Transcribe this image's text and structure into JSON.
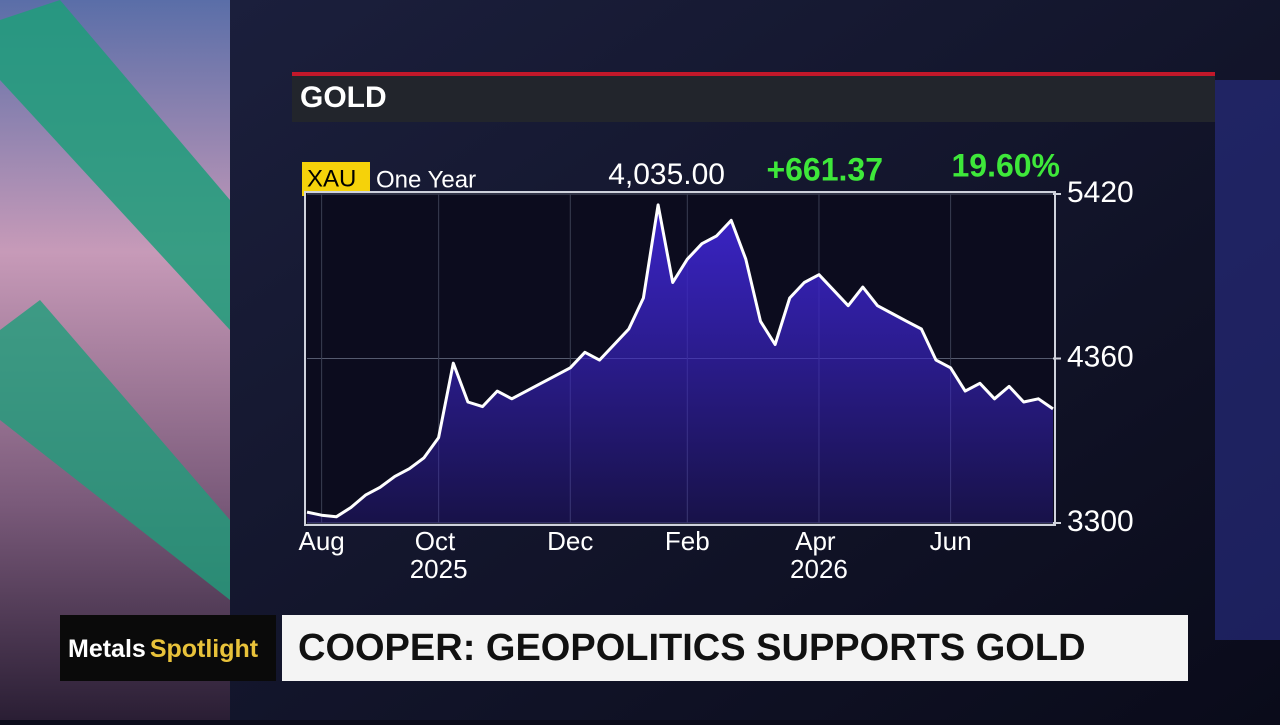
{
  "ticker": {
    "symbol": "XAU",
    "period": "One Year",
    "price": "4,035.00",
    "change": "+661.37",
    "change_pct": "19.60%"
  },
  "lower_third": {
    "tag_1": "Metals",
    "tag_2": "Spotlight",
    "headline": "COOPER: GEOPOLITICS SUPPORTS GOLD"
  },
  "chart_data": {
    "type": "area",
    "title": "GOLD",
    "categories": [
      null,
      "Aug",
      null,
      null,
      null,
      null,
      null,
      null,
      null,
      "Oct 2025",
      null,
      null,
      null,
      null,
      null,
      null,
      null,
      null,
      "Dec",
      null,
      null,
      null,
      null,
      null,
      null,
      null,
      "Feb",
      null,
      null,
      null,
      null,
      null,
      null,
      null,
      null,
      "Apr 2026",
      null,
      null,
      null,
      null,
      null,
      null,
      null,
      null,
      "Jun",
      null,
      null,
      null,
      null,
      null,
      null,
      null
    ],
    "values": [
      3370,
      3350,
      3340,
      3400,
      3480,
      3530,
      3600,
      3650,
      3720,
      3850,
      4330,
      4080,
      4050,
      4150,
      4100,
      4150,
      4200,
      4250,
      4300,
      4400,
      4350,
      4450,
      4550,
      4750,
      5350,
      4850,
      5000,
      5100,
      5150,
      5250,
      5000,
      4600,
      4450,
      4750,
      4850,
      4900,
      4800,
      4700,
      4820,
      4700,
      4650,
      4600,
      4550,
      4350,
      4300,
      4150,
      4200,
      4100,
      4180,
      4080,
      4100,
      4035
    ],
    "color": "#ffffff",
    "area_color": "#3b24c9",
    "ylim": [
      3300,
      5420
    ],
    "yticks": [
      3300,
      4360,
      5420
    ],
    "grid": true
  }
}
